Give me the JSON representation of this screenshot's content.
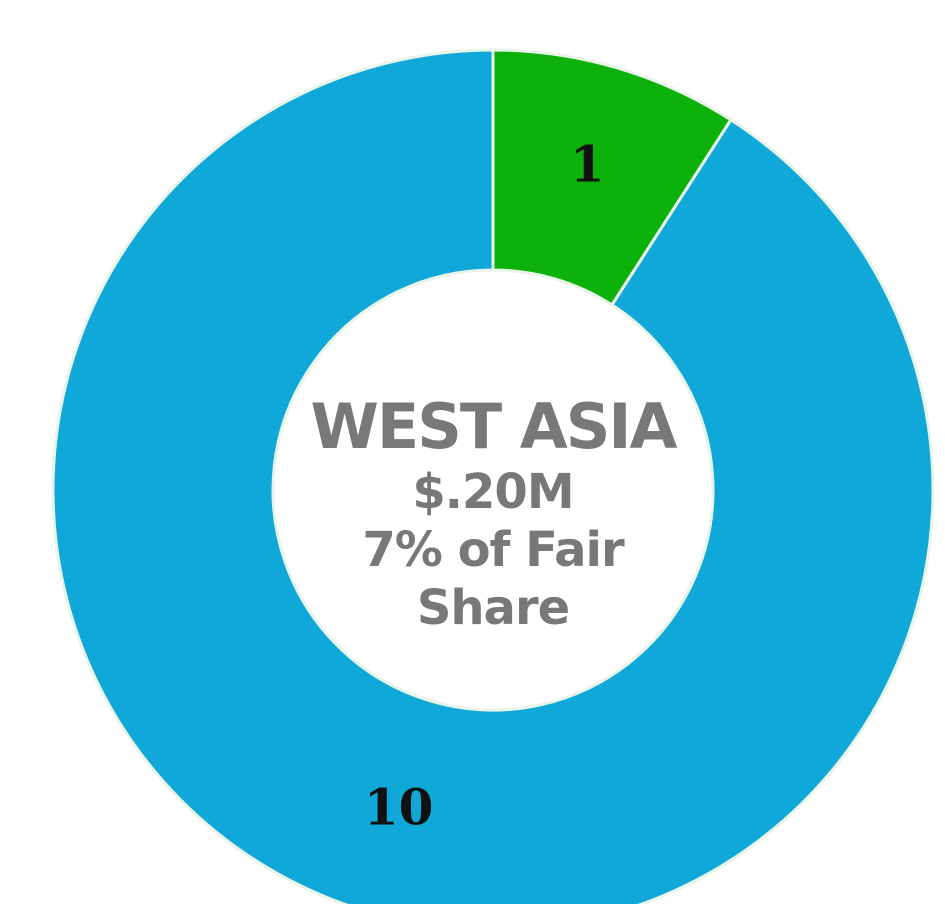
{
  "chart_data": {
    "type": "donut",
    "values": [
      1,
      10
    ],
    "colors": [
      "#0db10b",
      "#0fa8d9"
    ],
    "center_text": [
      "WEST ASIA",
      "$.20M",
      "7% of Fair Share"
    ]
  }
}
